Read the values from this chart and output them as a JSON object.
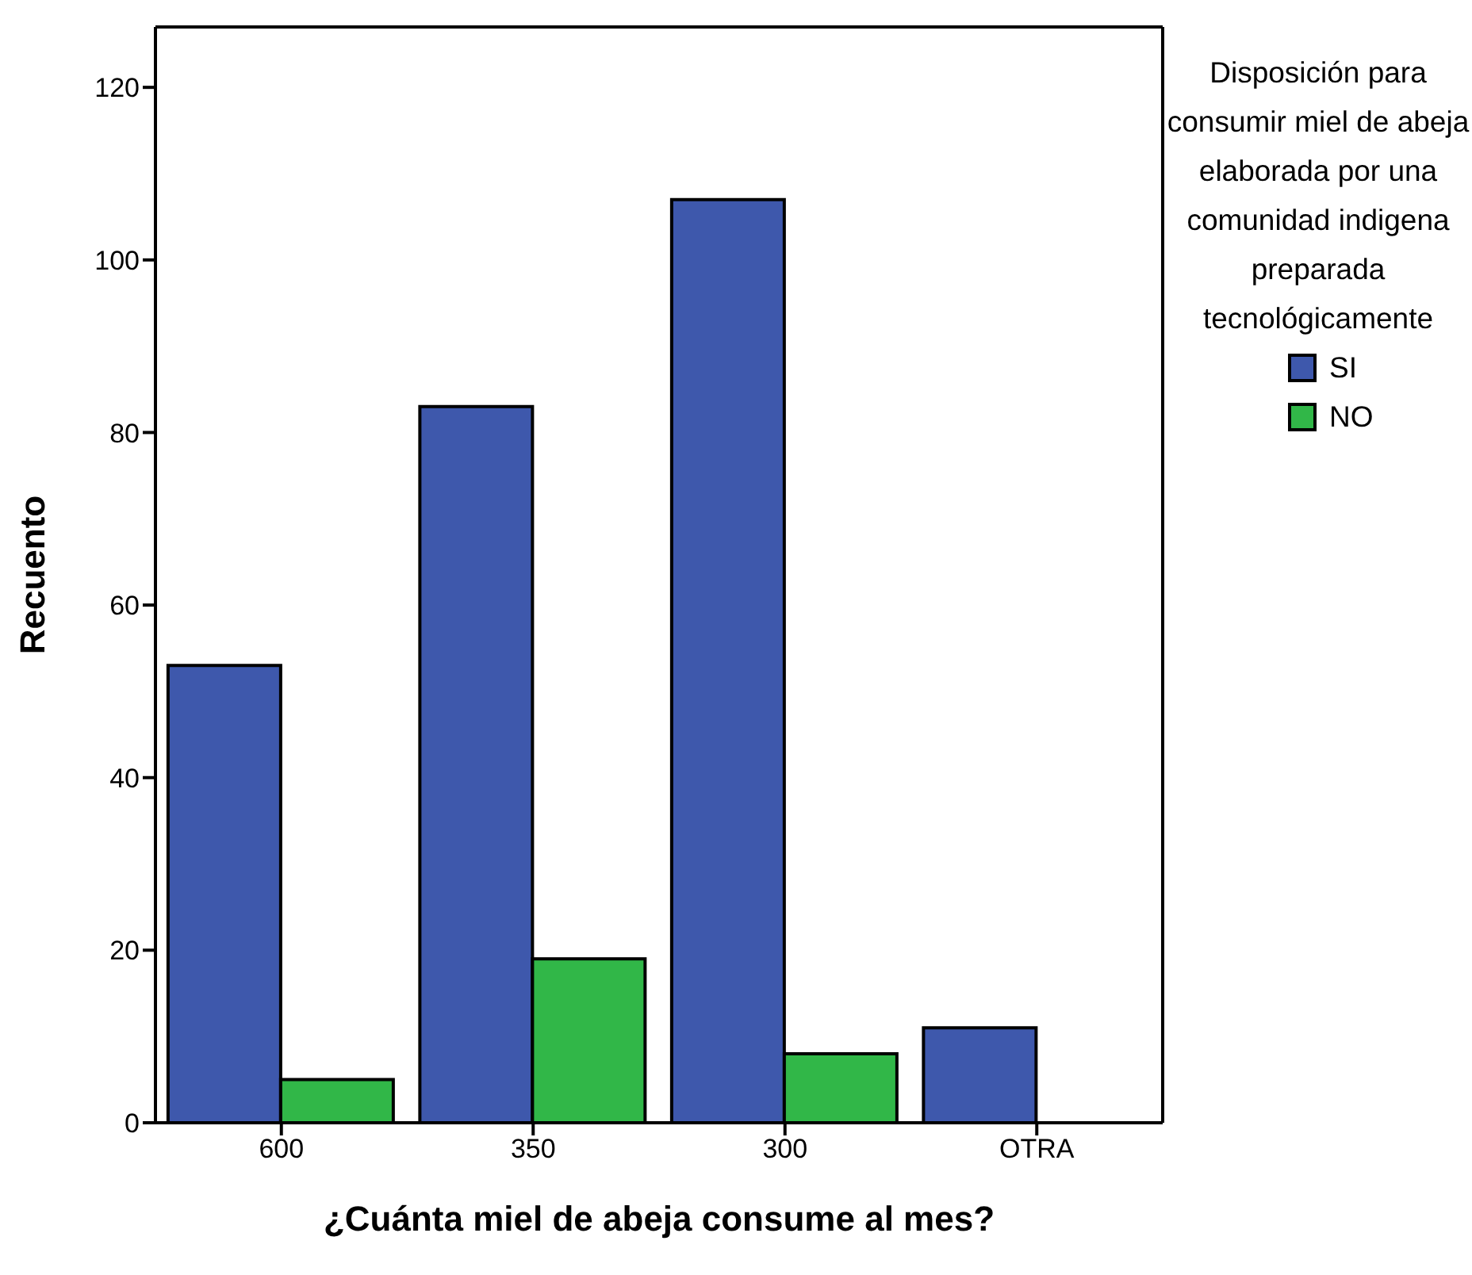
{
  "chart_data": {
    "type": "bar",
    "xlabel": "¿Cuánta miel de abeja consume al mes?",
    "ylabel": "Recuento",
    "legend_title": "Disposición para consumir miel de abeja elaborada por una comunidad indigena preparada tecnológicamente",
    "categories": [
      "600",
      "350",
      "300",
      "OTRA"
    ],
    "series": [
      {
        "name": "SI",
        "color": "#3e58ac",
        "values": [
          53,
          83,
          107,
          11
        ]
      },
      {
        "name": "NO",
        "color": "#31b748",
        "values": [
          5,
          19,
          8,
          null
        ]
      }
    ],
    "ylim": [
      0,
      127
    ],
    "yticks": [
      0,
      20,
      40,
      60,
      80,
      100,
      120
    ],
    "legend": "right"
  }
}
